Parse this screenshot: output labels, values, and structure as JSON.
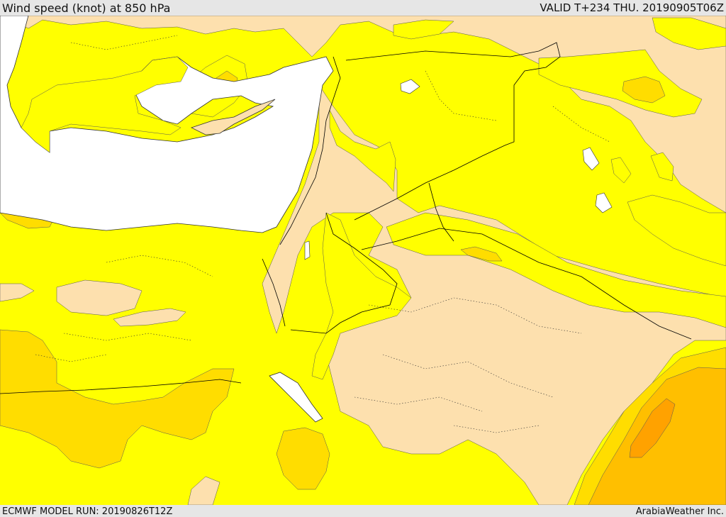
{
  "header": {
    "title": "Wind speed (knot) at 850 hPa",
    "valid": "VALID T+234 THU. 20190905T06Z"
  },
  "footer": {
    "model_run": "ECMWF MODEL RUN: 20190826T12Z",
    "provider": "ArabiaWeather Inc."
  },
  "colors": {
    "sea": "#ffffff",
    "band_light": "#fde0ae",
    "band_yellow": "#ffff00",
    "band_gold": "#ffdd00",
    "band_amber": "#ffbf00",
    "band_orange": "#ffa200",
    "border": "#000000"
  }
}
